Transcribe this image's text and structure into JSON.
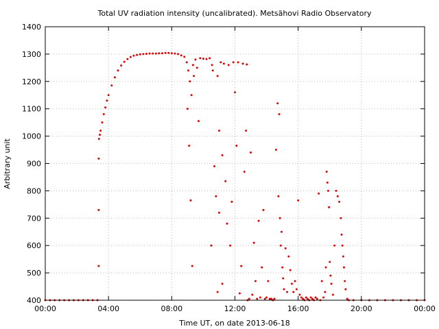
{
  "chart_data": {
    "type": "scatter",
    "title": "Total UV radiation intensity (uncalibrated). Metsähovi Radio Observatory",
    "xlabel": "Time UT, on date 2013-06-18",
    "ylabel": "Arbitrary unit",
    "xlim": [
      0,
      24
    ],
    "ylim": [
      400,
      1400
    ],
    "x_ticks": [
      0,
      4,
      8,
      12,
      16,
      20,
      24
    ],
    "x_tick_labels": [
      "00:00",
      "04:00",
      "08:00",
      "12:00",
      "16:00",
      "20:00",
      "00:00"
    ],
    "y_ticks": [
      400,
      500,
      600,
      700,
      800,
      900,
      1000,
      1100,
      1200,
      1300,
      1400
    ],
    "y_tick_labels": [
      "400",
      "500",
      "600",
      "700",
      "800",
      "900",
      "1000",
      "1100",
      "1200",
      "1300",
      "1400"
    ],
    "grid": true,
    "legend": false,
    "colors": {
      "series": "#e00000",
      "grid": "#b8b8b8",
      "axis": "#000000"
    },
    "series": [
      {
        "x": [
          0.0,
          0.3,
          0.6,
          0.9,
          1.2,
          1.5,
          1.8,
          2.1,
          2.4,
          2.7,
          3.0,
          3.3,
          3.38,
          3.38,
          3.38,
          3.4,
          3.45,
          3.5,
          3.6,
          3.7,
          3.8,
          3.9,
          4.0,
          4.2,
          4.4,
          4.6,
          4.8,
          5.0,
          5.2,
          5.4,
          5.6,
          5.8,
          6.0,
          6.2,
          6.4,
          6.6,
          6.8,
          7.0,
          7.2,
          7.4,
          7.6,
          7.8,
          8.0,
          8.2,
          8.4,
          8.6,
          8.8,
          8.95,
          9.0,
          9.05,
          9.1,
          9.15,
          9.2,
          9.25,
          9.3,
          9.35,
          9.4,
          9.5,
          9.6,
          9.7,
          9.8,
          10.0,
          10.2,
          10.4,
          10.5,
          10.55,
          10.6,
          10.7,
          10.8,
          10.9,
          10.9,
          11.0,
          11.0,
          11.1,
          11.2,
          11.2,
          11.3,
          11.4,
          11.5,
          11.6,
          11.7,
          11.8,
          11.9,
          12.0,
          12.1,
          12.2,
          12.3,
          12.4,
          12.5,
          12.6,
          12.7,
          12.75,
          12.8,
          12.9,
          13.0,
          13.1,
          13.2,
          13.3,
          13.4,
          13.5,
          13.6,
          13.7,
          13.8,
          13.9,
          14.0,
          14.1,
          14.2,
          14.3,
          14.4,
          14.5,
          14.6,
          14.7,
          14.75,
          14.8,
          14.85,
          14.9,
          14.95,
          15.0,
          15.05,
          15.1,
          15.2,
          15.3,
          15.4,
          15.5,
          15.6,
          15.7,
          15.8,
          15.9,
          16.0,
          16.1,
          16.2,
          16.3,
          16.4,
          16.5,
          16.6,
          16.7,
          16.8,
          16.9,
          17.0,
          17.1,
          17.2,
          17.3,
          17.4,
          17.5,
          17.6,
          17.7,
          17.75,
          17.8,
          17.85,
          17.9,
          17.95,
          18.0,
          18.05,
          18.1,
          18.2,
          18.3,
          18.4,
          18.5,
          18.6,
          18.7,
          18.75,
          18.8,
          18.85,
          18.9,
          18.95,
          19.0,
          19.1,
          19.2,
          19.5,
          20.0,
          20.5,
          21.0,
          21.5,
          22.0,
          22.5,
          23.0,
          23.5,
          24.0
        ],
        "y": [
          400,
          400,
          400,
          400,
          400,
          400,
          400,
          400,
          400,
          400,
          400,
          400,
          525,
          730,
          918,
          990,
          1005,
          1020,
          1050,
          1080,
          1105,
          1130,
          1150,
          1185,
          1215,
          1240,
          1258,
          1272,
          1282,
          1289,
          1294,
          1297,
          1299,
          1300,
          1301,
          1302,
          1302,
          1302,
          1303,
          1303,
          1304,
          1304,
          1303,
          1302,
          1300,
          1295,
          1290,
          1270,
          1100,
          1240,
          965,
          1200,
          765,
          1150,
          525,
          1260,
          1220,
          1280,
          1250,
          1055,
          1285,
          1283,
          1282,
          1285,
          600,
          1260,
          1240,
          890,
          780,
          1220,
          430,
          1020,
          720,
          1270,
          930,
          460,
          1265,
          835,
          680,
          1260,
          600,
          760,
          1270,
          1160,
          965,
          1270,
          425,
          525,
          1265,
          870,
          1020,
          1262,
          400,
          405,
          940,
          420,
          610,
          470,
          405,
          690,
          410,
          520,
          730,
          405,
          410,
          470,
          405,
          405,
          400,
          405,
          950,
          1120,
          780,
          1080,
          700,
          600,
          650,
          520,
          480,
          440,
          590,
          430,
          560,
          510,
          460,
          430,
          470,
          440,
          765,
          420,
          410,
          405,
          400,
          410,
          405,
          400,
          410,
          405,
          400,
          410,
          405,
          790,
          400,
          470,
          410,
          430,
          520,
          870,
          830,
          800,
          740,
          540,
          490,
          460,
          420,
          600,
          800,
          780,
          760,
          700,
          640,
          600,
          560,
          520,
          470,
          440,
          405,
          400,
          400,
          400,
          400,
          400,
          400,
          400,
          400,
          400,
          400,
          400
        ]
      }
    ]
  }
}
